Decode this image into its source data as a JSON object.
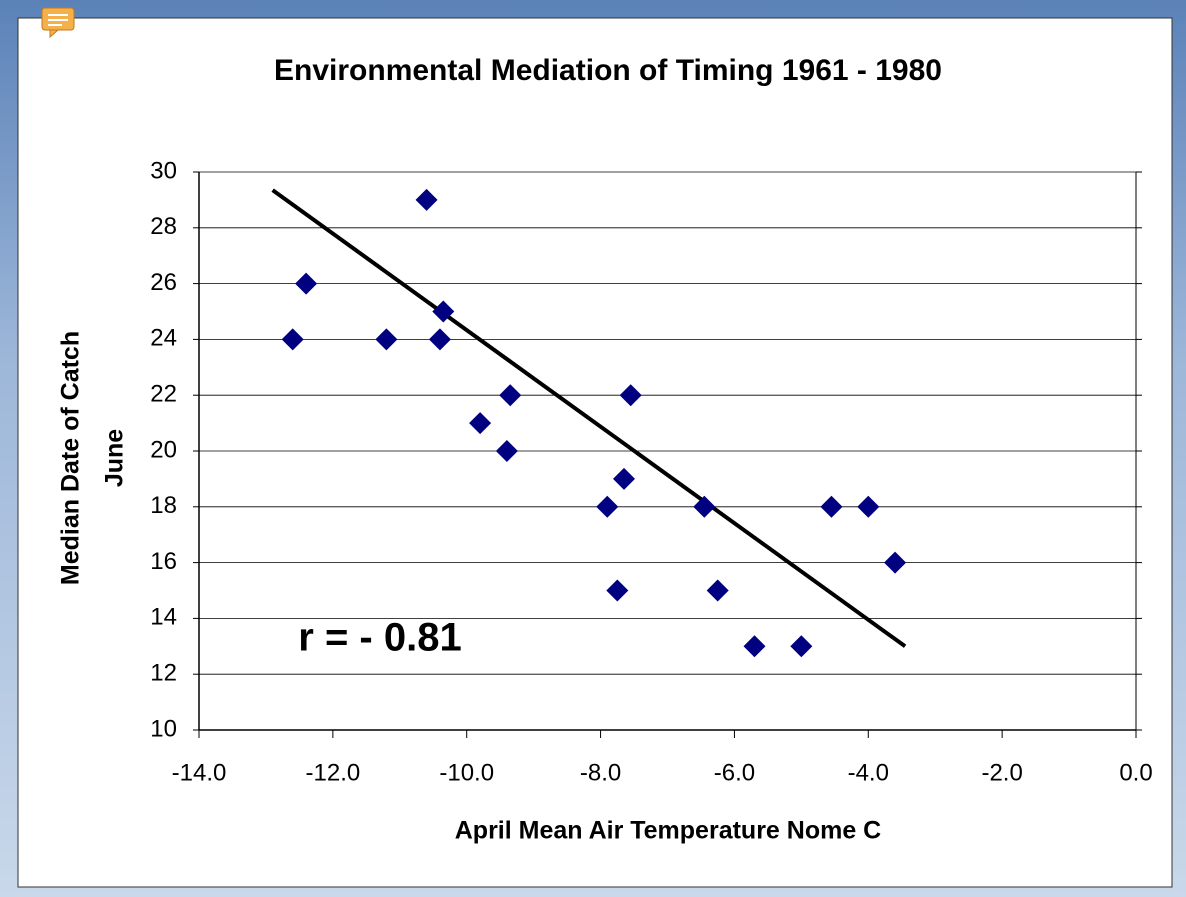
{
  "chart_data": {
    "type": "scatter",
    "title": "Environmental Mediation of Timing 1961 - 1980",
    "xlabel": "April Mean Air Temperature Nome C",
    "ylabel": [
      "Median Date of Catch",
      "June"
    ],
    "annotation": "r = - 0.81",
    "series": [
      {
        "color": "#000080",
        "x": [
          -12.6,
          -12.4,
          -11.2,
          -10.6,
          -10.35,
          -10.4,
          -9.8,
          -9.35,
          -9.4,
          -7.9,
          -7.65,
          -7.75,
          -7.55,
          -6.45,
          -6.25,
          -5.7,
          -5.0,
          -4.55,
          -4.0,
          -3.6
        ],
        "values": [
          24,
          26,
          24,
          29,
          25,
          24,
          21,
          22,
          20,
          18,
          19,
          15,
          22,
          18,
          15,
          13,
          13,
          18,
          18,
          16
        ]
      }
    ],
    "trendline": {
      "color": "#000000",
      "x": [
        -12.9,
        -3.45
      ],
      "values": [
        29.35,
        13.0
      ]
    },
    "xlim": [
      -14,
      0
    ],
    "xticks": [
      {
        "value": -14,
        "label": "-14.0"
      },
      {
        "value": -12,
        "label": "-12.0"
      },
      {
        "value": -10,
        "label": "-10.0"
      },
      {
        "value": -8,
        "label": "-8.0"
      },
      {
        "value": -6,
        "label": "-6.0"
      },
      {
        "value": -4,
        "label": "-4.0"
      },
      {
        "value": -2,
        "label": "-2.0"
      },
      {
        "value": 0,
        "label": "0.0"
      }
    ],
    "ylim": [
      10,
      30
    ],
    "yticks": [
      10,
      12,
      14,
      16,
      18,
      20,
      22,
      24,
      26,
      28,
      30
    ],
    "grid": true
  }
}
